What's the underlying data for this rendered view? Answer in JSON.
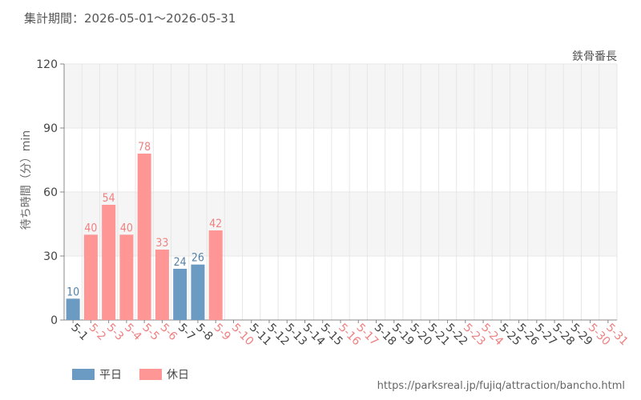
{
  "period_text": "集計期間：2026-05-01〜2026-05-31",
  "attraction_name": "鉄骨番長",
  "footer_url": "https://parksreal.jp/fujiq/attraction/bancho.html",
  "legend": [
    {
      "label": "平日",
      "color": "#6b9bc3"
    },
    {
      "label": "休日",
      "color": "#ff9696"
    }
  ],
  "chart_data": {
    "type": "bar",
    "ylabel": "待ち時間（分）min",
    "xlabel": "",
    "ylim": [
      0,
      120
    ],
    "yticks": [
      0,
      30,
      60,
      90,
      120
    ],
    "categories": [
      "5-1",
      "5-2",
      "5-3",
      "5-4",
      "5-5",
      "5-6",
      "5-7",
      "5-8",
      "5-9",
      "5-10",
      "5-11",
      "5-12",
      "5-13",
      "5-14",
      "5-15",
      "5-16",
      "5-17",
      "5-18",
      "5-19",
      "5-20",
      "5-21",
      "5-22",
      "5-23",
      "5-24",
      "5-25",
      "5-26",
      "5-27",
      "5-28",
      "5-29",
      "5-30",
      "5-31"
    ],
    "values": [
      10,
      40,
      54,
      40,
      78,
      33,
      24,
      26,
      42,
      null,
      null,
      null,
      null,
      null,
      null,
      null,
      null,
      null,
      null,
      null,
      null,
      null,
      null,
      null,
      null,
      null,
      null,
      null,
      null,
      null,
      null
    ],
    "day_types": [
      "weekday",
      "holiday",
      "holiday",
      "holiday",
      "holiday",
      "holiday",
      "weekday",
      "weekday",
      "holiday",
      "holiday",
      "weekday",
      "weekday",
      "weekday",
      "weekday",
      "weekday",
      "holiday",
      "holiday",
      "weekday",
      "weekday",
      "weekday",
      "weekday",
      "weekday",
      "holiday",
      "holiday",
      "weekday",
      "weekday",
      "weekday",
      "weekday",
      "weekday",
      "holiday",
      "holiday"
    ],
    "colors": {
      "weekday": "#6b9bc3",
      "holiday": "#ff9696",
      "weekday_text": "#5580a8",
      "holiday_text": "#f08080",
      "axis_text": "#444444"
    }
  }
}
